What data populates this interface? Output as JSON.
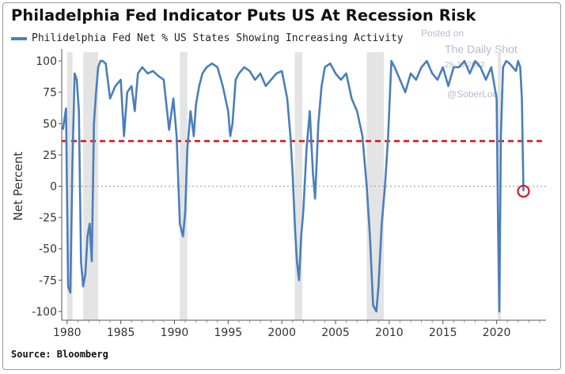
{
  "header": {
    "title": "Philadelphia Fed Indicator Puts US At Recession Risk"
  },
  "legend": {
    "label": "Philidelphia Fed Net % US States Showing Increasing Activity"
  },
  "watermark": {
    "line1": "Posted on",
    "line2": "The Daily Shot",
    "line3": "29-Ju-2022",
    "line4": "@SoberLook"
  },
  "footer": {
    "source": "Source: Bloomberg"
  },
  "colors": {
    "series": "#4a7ebb",
    "threshold": "#d7191c",
    "zero_line": "#9a9a9a",
    "recession": "#e4e4e4",
    "marker": "#d7191c"
  },
  "chart_data": {
    "type": "line",
    "title": "Philadelphia Fed Indicator Puts US At Recession Risk",
    "xlabel": "",
    "ylabel": "Net Percent",
    "xlim": [
      1979.5,
      2024.6
    ],
    "ylim": [
      -107,
      107
    ],
    "x_ticks": [
      1980,
      1985,
      1990,
      1995,
      2000,
      2005,
      2010,
      2015,
      2020
    ],
    "x_tick_labels": [
      "1980",
      "1985",
      "1990",
      "1995",
      "2000",
      "2005",
      "2010",
      "2015",
      "2020"
    ],
    "y_ticks": [
      100,
      75,
      50,
      25,
      0,
      -25,
      -50,
      -75,
      -100
    ],
    "y_tick_labels": [
      "100",
      "75",
      "50",
      "25",
      "0",
      "-25",
      "-50",
      "-75",
      "-100"
    ],
    "grid": false,
    "legend_position": "top-left",
    "recession_bands": [
      [
        1980.0,
        1980.5
      ],
      [
        1981.5,
        1982.9
      ],
      [
        1990.5,
        1991.2
      ],
      [
        2001.2,
        2001.9
      ],
      [
        2007.9,
        2009.5
      ],
      [
        2020.1,
        2020.4
      ]
    ],
    "reference_lines": [
      {
        "y": 36,
        "style": "dashed",
        "color": "#d7191c"
      },
      {
        "y": 0,
        "style": "dotted",
        "color": "#9a9a9a"
      }
    ],
    "highlight_point": {
      "x": 2022.5,
      "y": -4
    },
    "series": [
      {
        "name": "Philidelphia Fed Net % US States Showing Increasing Activity",
        "x": [
          1979.6,
          1979.9,
          1980.1,
          1980.3,
          1980.5,
          1980.7,
          1980.9,
          1981.1,
          1981.3,
          1981.5,
          1981.7,
          1981.9,
          1982.1,
          1982.3,
          1982.5,
          1982.7,
          1982.9,
          1983.1,
          1983.3,
          1983.6,
          1984.0,
          1984.5,
          1985.0,
          1985.3,
          1985.6,
          1986.0,
          1986.3,
          1986.6,
          1987.0,
          1987.5,
          1988.0,
          1988.5,
          1989.0,
          1989.5,
          1989.9,
          1990.2,
          1990.5,
          1990.8,
          1991.0,
          1991.2,
          1991.5,
          1991.8,
          1992.0,
          1992.3,
          1992.6,
          1993.0,
          1993.5,
          1994.0,
          1994.5,
          1995.0,
          1995.2,
          1995.4,
          1995.7,
          1996.0,
          1996.5,
          1997.0,
          1997.5,
          1998.0,
          1998.5,
          1999.0,
          1999.5,
          2000.0,
          2000.5,
          2000.8,
          2001.0,
          2001.2,
          2001.4,
          2001.6,
          2001.8,
          2002.0,
          2002.3,
          2002.6,
          2002.9,
          2003.1,
          2003.4,
          2003.7,
          2004.0,
          2004.5,
          2005.0,
          2005.5,
          2006.0,
          2006.5,
          2007.0,
          2007.5,
          2007.9,
          2008.2,
          2008.5,
          2008.8,
          2009.0,
          2009.3,
          2009.6,
          2009.9,
          2010.2,
          2010.5,
          2011.0,
          2011.5,
          2012.0,
          2012.5,
          2013.0,
          2013.5,
          2014.0,
          2014.5,
          2015.0,
          2015.5,
          2016.0,
          2016.5,
          2017.0,
          2017.5,
          2018.0,
          2018.5,
          2019.0,
          2019.5,
          2020.0,
          2020.15,
          2020.25,
          2020.4,
          2020.6,
          2020.9,
          2021.2,
          2021.5,
          2021.8,
          2022.0,
          2022.2,
          2022.35,
          2022.5
        ],
        "y": [
          45,
          62,
          -80,
          -85,
          20,
          90,
          85,
          60,
          -60,
          -80,
          -70,
          -40,
          -30,
          -60,
          50,
          75,
          95,
          100,
          100,
          98,
          70,
          80,
          85,
          40,
          75,
          80,
          60,
          90,
          95,
          90,
          92,
          88,
          85,
          45,
          70,
          40,
          -30,
          -40,
          -20,
          30,
          60,
          40,
          65,
          80,
          90,
          95,
          98,
          95,
          80,
          60,
          40,
          50,
          85,
          90,
          95,
          92,
          85,
          90,
          80,
          85,
          90,
          92,
          70,
          40,
          10,
          -30,
          -60,
          -75,
          -40,
          -20,
          30,
          60,
          10,
          -10,
          50,
          80,
          95,
          98,
          90,
          85,
          90,
          70,
          60,
          40,
          0,
          -40,
          -95,
          -100,
          -80,
          -30,
          0,
          40,
          100,
          95,
          85,
          75,
          90,
          85,
          95,
          100,
          90,
          85,
          95,
          80,
          95,
          95,
          100,
          90,
          100,
          95,
          85,
          95,
          70,
          -40,
          -100,
          40,
          95,
          100,
          98,
          95,
          92,
          100,
          95,
          70,
          -4
        ]
      }
    ]
  }
}
